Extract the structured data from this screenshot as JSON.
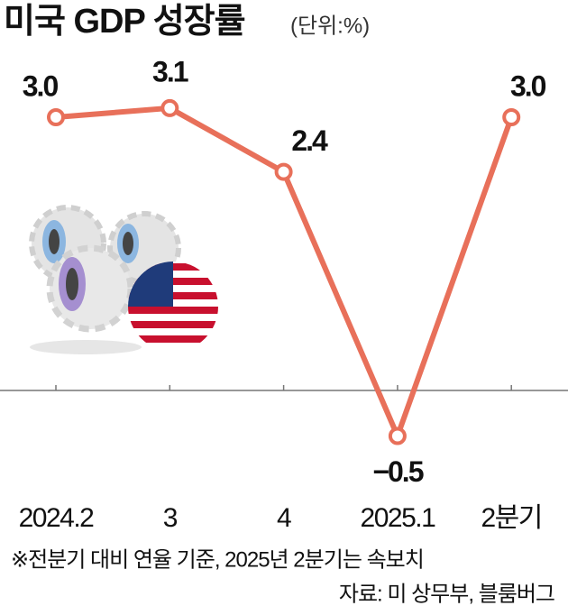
{
  "chart_data": {
    "type": "line",
    "title": "미국 GDP 성장률",
    "unit": "(단위:%)",
    "categories": [
      "2024.2",
      "3",
      "4",
      "2025.1",
      "2분기"
    ],
    "values": [
      3.0,
      3.1,
      2.4,
      -0.5,
      3.0
    ],
    "value_labels": [
      "3.0",
      "3.1",
      "2.4",
      "−0.5",
      "3.0"
    ],
    "color": "#e8705a",
    "ylim": [
      -1,
      3.5
    ],
    "notes": [
      "※전분기 대비 연율 기준, 2025년 2분기는 속보치",
      "자료: 미 상무부, 블룸버그"
    ]
  }
}
